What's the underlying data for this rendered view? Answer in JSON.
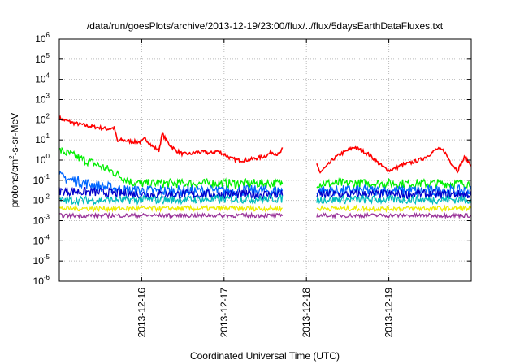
{
  "chart_data": {
    "type": "line",
    "title": "/data/run/goesPlots/archive/2013-12-19/23:00/flux/../flux/5daysEarthDataFluxes.txt",
    "xlabel": "Coordinated Universal Time (UTC)",
    "ylabel": {
      "base": "protons/cm",
      "sup": "2",
      "rest": "-s-sr-MeV"
    },
    "yscale": "log",
    "ylim": [
      1e-06,
      1000000.0
    ],
    "y_ticks": [
      {
        "value": 1e-06,
        "base": "10",
        "exp": "-6"
      },
      {
        "value": 1e-05,
        "base": "10",
        "exp": "-5"
      },
      {
        "value": 0.0001,
        "base": "10",
        "exp": "-4"
      },
      {
        "value": 0.001,
        "base": "10",
        "exp": "-3"
      },
      {
        "value": 0.01,
        "base": "10",
        "exp": "-2"
      },
      {
        "value": 0.1,
        "base": "10",
        "exp": "-1"
      },
      {
        "value": 1,
        "base": "10",
        "exp": "0"
      },
      {
        "value": 10,
        "base": "10",
        "exp": "1"
      },
      {
        "value": 100,
        "base": "10",
        "exp": "2"
      },
      {
        "value": 1000.0,
        "base": "10",
        "exp": "3"
      },
      {
        "value": 10000.0,
        "base": "10",
        "exp": "4"
      },
      {
        "value": 100000.0,
        "base": "10",
        "exp": "5"
      },
      {
        "value": 1000000.0,
        "base": "10",
        "exp": "6"
      }
    ],
    "xlim": [
      "2013-12-15T00:00",
      "2013-12-20T00:00"
    ],
    "x_ticks": [
      "2013-12-16",
      "2013-12-17",
      "2013-12-18",
      "2013-12-19"
    ],
    "grid": true,
    "data_gap": [
      "2013-12-17T17:00",
      "2013-12-18T03:00"
    ],
    "series": [
      {
        "color": "#ff0000",
        "points": [
          [
            "2013-12-15T00:00",
            120
          ],
          [
            "2013-12-15T02:00",
            90
          ],
          [
            "2013-12-15T04:00",
            70
          ],
          [
            "2013-12-15T06:00",
            60
          ],
          [
            "2013-12-15T08:00",
            50
          ],
          [
            "2013-12-15T10:00",
            45
          ],
          [
            "2013-12-15T12:00",
            40
          ],
          [
            "2013-12-15T14:00",
            35
          ],
          [
            "2013-12-15T16:00",
            40
          ],
          [
            "2013-12-15T17:00",
            8
          ],
          [
            "2013-12-15T18:00",
            10
          ],
          [
            "2013-12-15T20:00",
            9
          ],
          [
            "2013-12-15T22:00",
            8
          ],
          [
            "2013-12-16T00:00",
            8
          ],
          [
            "2013-12-16T01:00",
            12
          ],
          [
            "2013-12-16T03:00",
            5
          ],
          [
            "2013-12-16T05:00",
            3
          ],
          [
            "2013-12-16T06:00",
            20
          ],
          [
            "2013-12-16T08:00",
            6
          ],
          [
            "2013-12-16T10:00",
            3
          ],
          [
            "2013-12-16T12:00",
            2
          ],
          [
            "2013-12-16T14:00",
            2
          ],
          [
            "2013-12-16T16:00",
            2.5
          ],
          [
            "2013-12-16T18:00",
            2.5
          ],
          [
            "2013-12-16T20:00",
            2.2
          ],
          [
            "2013-12-16T22:00",
            2.8
          ],
          [
            "2013-12-17T00:00",
            2
          ],
          [
            "2013-12-17T02:00",
            1.2
          ],
          [
            "2013-12-17T04:00",
            1
          ],
          [
            "2013-12-17T06:00",
            1
          ],
          [
            "2013-12-17T08:00",
            1.1
          ],
          [
            "2013-12-17T10:00",
            1.3
          ],
          [
            "2013-12-17T12:00",
            1.6
          ],
          [
            "2013-12-17T14:00",
            2.5
          ],
          [
            "2013-12-17T16:00",
            1.8
          ],
          [
            "2013-12-17T17:00",
            3.5
          ]
        ],
        "points_after_gap": [
          [
            "2013-12-18T03:00",
            0.6
          ],
          [
            "2013-12-18T04:00",
            0.25
          ],
          [
            "2013-12-18T06:00",
            0.5
          ],
          [
            "2013-12-18T08:00",
            1.2
          ],
          [
            "2013-12-18T10:00",
            2
          ],
          [
            "2013-12-18T12:00",
            3
          ],
          [
            "2013-12-18T14:00",
            4.5
          ],
          [
            "2013-12-18T16:00",
            3
          ],
          [
            "2013-12-18T18:00",
            2
          ],
          [
            "2013-12-18T20:00",
            1
          ],
          [
            "2013-12-18T22:00",
            0.5
          ],
          [
            "2013-12-19T00:00",
            0.3
          ],
          [
            "2013-12-19T02:00",
            0.4
          ],
          [
            "2013-12-19T04:00",
            0.6
          ],
          [
            "2013-12-19T06:00",
            0.7
          ],
          [
            "2013-12-19T08:00",
            0.9
          ],
          [
            "2013-12-19T10:00",
            1.2
          ],
          [
            "2013-12-19T12:00",
            2
          ],
          [
            "2013-12-19T14:00",
            3.5
          ],
          [
            "2013-12-19T16:00",
            3
          ],
          [
            "2013-12-19T18:00",
            0.8
          ],
          [
            "2013-12-19T20:00",
            0.3
          ],
          [
            "2013-12-19T22:00",
            1.3
          ],
          [
            "2013-12-20T00:00",
            0.6
          ]
        ]
      },
      {
        "color": "#00ee00",
        "points": [
          [
            "2013-12-15T00:00",
            3
          ],
          [
            "2013-12-15T03:00",
            2
          ],
          [
            "2013-12-15T06:00",
            1.2
          ],
          [
            "2013-12-15T09:00",
            0.8
          ],
          [
            "2013-12-15T12:00",
            0.5
          ],
          [
            "2013-12-15T15:00",
            0.3
          ],
          [
            "2013-12-15T18:00",
            0.15
          ],
          [
            "2013-12-15T21:00",
            0.08
          ],
          [
            "2013-12-16T00:00",
            0.07
          ],
          [
            "2013-12-16T12:00",
            0.07
          ],
          [
            "2013-12-17T00:00",
            0.07
          ],
          [
            "2013-12-17T17:00",
            0.07
          ]
        ],
        "level_after_gap": 0.07
      },
      {
        "color": "#0066ff",
        "points": [
          [
            "2013-12-15T00:00",
            0.15
          ],
          [
            "2013-12-15T04:00",
            0.1
          ],
          [
            "2013-12-15T08:00",
            0.07
          ],
          [
            "2013-12-15T12:00",
            0.05
          ],
          [
            "2013-12-15T16:00",
            0.04
          ],
          [
            "2013-12-15T20:00",
            0.03
          ],
          [
            "2013-12-16T00:00",
            0.03
          ],
          [
            "2013-12-17T17:00",
            0.03
          ]
        ],
        "level_after_gap": 0.03
      },
      {
        "color": "#0000cc",
        "points": [
          [
            "2013-12-15T00:00",
            0.03
          ],
          [
            "2013-12-15T12:00",
            0.025
          ],
          [
            "2013-12-16T00:00",
            0.02
          ],
          [
            "2013-12-17T17:00",
            0.02
          ]
        ],
        "level_after_gap": 0.02
      },
      {
        "color": "#00bbbb",
        "points": [
          [
            "2013-12-15T00:00",
            0.01
          ],
          [
            "2013-12-17T17:00",
            0.012
          ]
        ],
        "level_after_gap": 0.011
      },
      {
        "color": "#eeee00",
        "points": [
          [
            "2013-12-15T00:00",
            0.004
          ],
          [
            "2013-12-17T17:00",
            0.004
          ]
        ],
        "level_after_gap": 0.004
      },
      {
        "color": "#993399",
        "points": [
          [
            "2013-12-15T00:00",
            0.0018
          ],
          [
            "2013-12-17T17:00",
            0.0018
          ]
        ],
        "level_after_gap": 0.0018
      }
    ]
  }
}
